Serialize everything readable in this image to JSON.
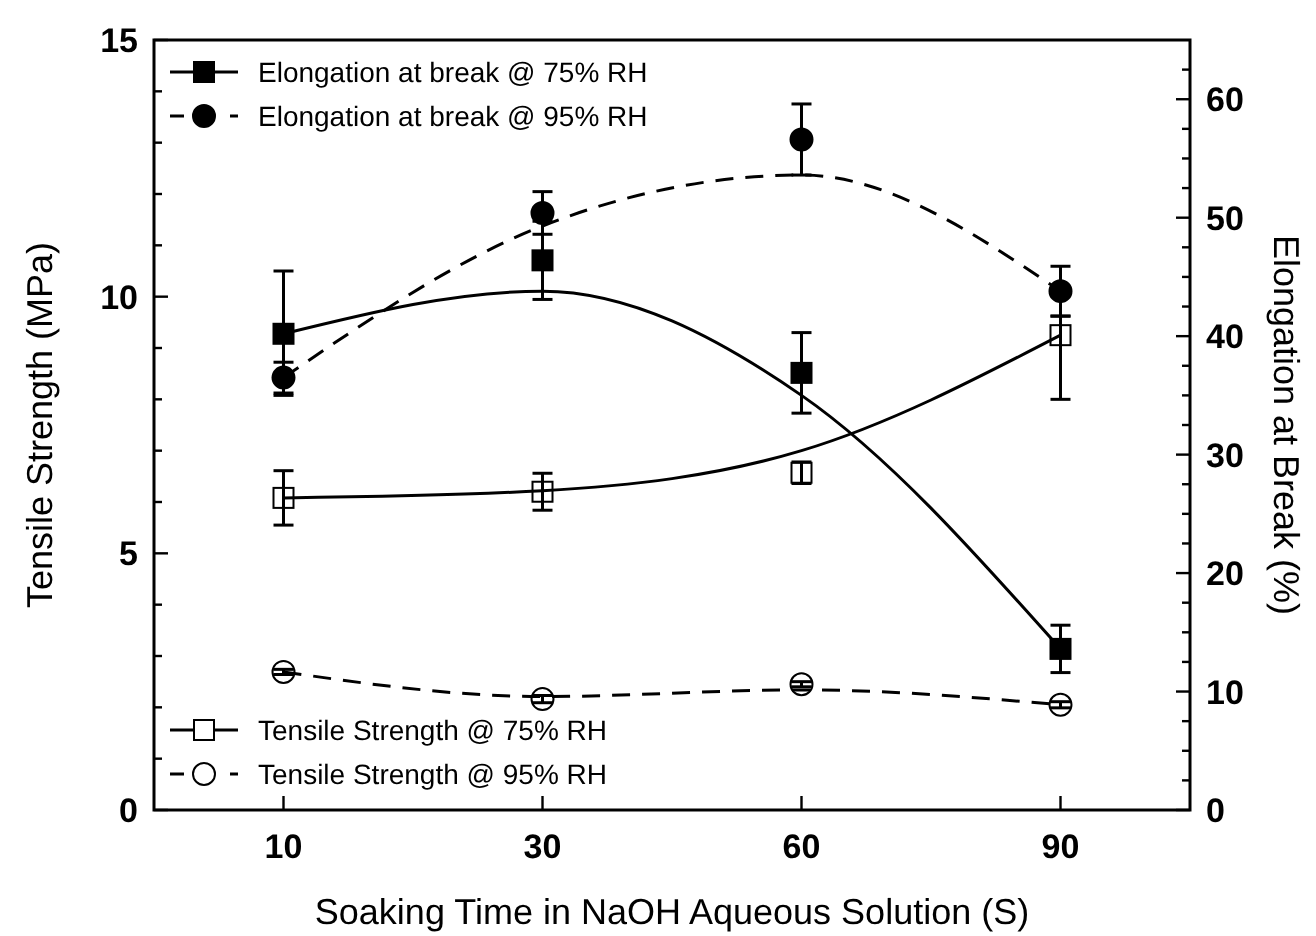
{
  "chart_data": {
    "type": "scatter",
    "xlabel": "Soaking Time in NaOH Aqueous Solution (S)",
    "ylabel": "Tensile Strength (MPa)",
    "y2label": "Elongation at Break (%)",
    "categories": [
      "10",
      "30",
      "60",
      "90"
    ],
    "ylim": [
      0,
      15
    ],
    "yticks": [
      0,
      {
        "value": 1,
        "label": null
      },
      {
        "value": 2,
        "label": null
      },
      {
        "value": 3,
        "label": null
      },
      {
        "value": 4,
        "label": null
      },
      5,
      {
        "value": 6,
        "label": null
      },
      {
        "value": 7,
        "label": null
      },
      {
        "value": 8,
        "label": null
      },
      {
        "value": 9,
        "label": null
      },
      10,
      {
        "value": 11,
        "label": null
      },
      {
        "value": 12,
        "label": null
      },
      {
        "value": 13,
        "label": null
      },
      {
        "value": 14,
        "label": null
      },
      15
    ],
    "y2lim": [
      0,
      65
    ],
    "y2ticks": [
      0,
      {
        "value": 2.5,
        "label": null
      },
      {
        "value": 5,
        "label": null
      },
      {
        "value": 7.5,
        "label": null
      },
      10,
      {
        "value": 12.5,
        "label": null
      },
      {
        "value": 15,
        "label": null
      },
      {
        "value": 17.5,
        "label": null
      },
      20,
      {
        "value": 22.5,
        "label": null
      },
      {
        "value": 25,
        "label": null
      },
      {
        "value": 27.5,
        "label": null
      },
      30,
      {
        "value": 32.5,
        "label": null
      },
      {
        "value": 35,
        "label": null
      },
      {
        "value": 37.5,
        "label": null
      },
      40,
      {
        "value": 42.5,
        "label": null
      },
      {
        "value": 45,
        "label": null
      },
      {
        "value": 47.5,
        "label": null
      },
      50,
      {
        "value": 52.5,
        "label": null
      },
      {
        "value": 55,
        "label": null
      },
      {
        "value": 57.5,
        "label": null
      },
      60,
      {
        "value": 62.5,
        "label": null
      }
    ],
    "legend": "left",
    "grid": false,
    "series": [
      {
        "name": "Elongation at break @ 75% RH",
        "axis": "y2",
        "color": "#000000",
        "marker": "square",
        "line_style": "solid",
        "values": [
          40.2,
          46.4,
          36.9,
          13.6
        ],
        "errors": [
          [
            35.0,
            45.5
          ],
          3.3,
          3.4,
          2.0
        ]
      },
      {
        "name": "Elongation at break @ 95% RH",
        "axis": "y2",
        "color": "#000000",
        "marker": "circle",
        "line_style": "dashed",
        "values": [
          36.5,
          50.4,
          56.6,
          43.8
        ],
        "errors": [
          1.3,
          1.8,
          3.0,
          2.1
        ]
      },
      {
        "name": "Tensile Strength @ 75% RH",
        "axis": "y",
        "color": "#000000",
        "marker": "square",
        "line_style": "solid",
        "values": [
          6.08,
          6.2,
          6.57,
          9.25
        ],
        "errors": [
          0.53,
          0.36,
          0.21,
          [
            8.0,
            9.62
          ]
        ]
      },
      {
        "name": "Tensile Strength @ 95% RH",
        "axis": "y",
        "color": "#000000",
        "marker": "circle",
        "line_style": "dashed",
        "values": [
          2.69,
          2.16,
          2.45,
          2.05
        ],
        "errors": [
          0.05,
          0.07,
          0.05,
          0.06
        ]
      },
      {
        "type": "line",
        "axis": "y2",
        "color": "#000000",
        "marker": "none",
        "line_style": "solid",
        "values": [
          40.2,
          43.8,
          35.0,
          13.6
        ]
      },
      {
        "type": "line",
        "axis": "y2",
        "color": "#000000",
        "marker": "none",
        "line_style": "dashed",
        "values": [
          36.5,
          49.3,
          53.6,
          43.8
        ]
      },
      {
        "type": "line",
        "axis": "y",
        "color": "#000000",
        "marker": "none",
        "line_style": "solid",
        "values": [
          6.08,
          6.22,
          7.0,
          9.25
        ]
      },
      {
        "type": "line",
        "axis": "y",
        "color": "#000000",
        "marker": "none",
        "line_style": "dashed",
        "values": [
          2.69,
          2.21,
          2.34,
          2.05
        ]
      }
    ]
  }
}
